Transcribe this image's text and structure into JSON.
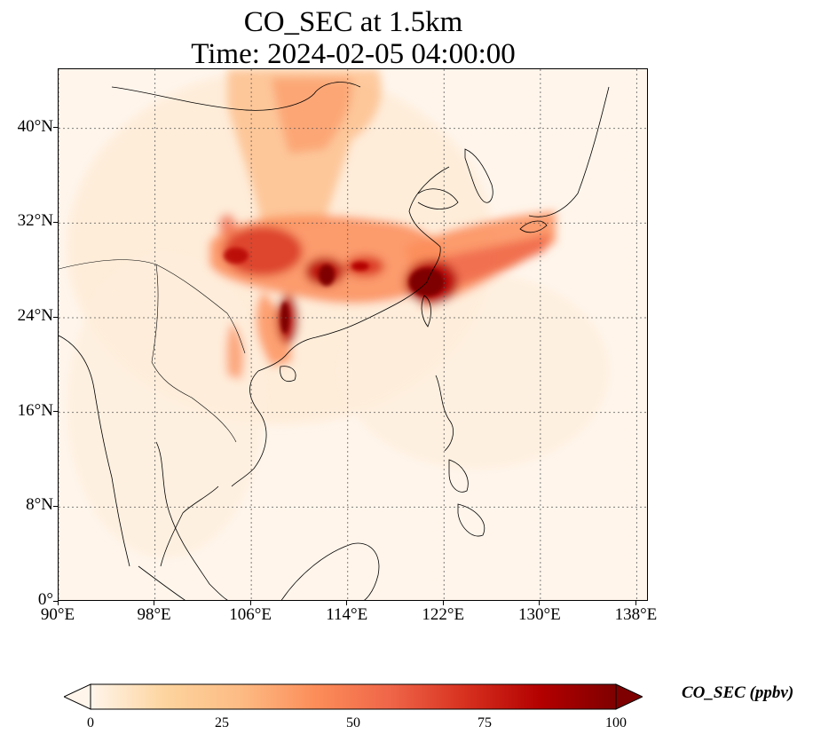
{
  "title": {
    "line1": "CO_SEC at 1.5km",
    "line2": "Time: 2024-02-05 04:00:00"
  },
  "map": {
    "projection": "PlateCarree",
    "lon_range": [
      90,
      139
    ],
    "lat_range": [
      0,
      45
    ],
    "gridlines": "dotted",
    "colormap": "OrRd",
    "x_ticks": [
      "90°E",
      "98°E",
      "106°E",
      "114°E",
      "122°E",
      "130°E",
      "138°E"
    ],
    "y_ticks": [
      "0°",
      "8°N",
      "16°N",
      "24°N",
      "32°N",
      "40°N"
    ]
  },
  "colorbar": {
    "label": "CO_SEC (ppbv)",
    "ticks": [
      "0",
      "25",
      "50",
      "75",
      "100"
    ],
    "range": [
      0,
      100
    ],
    "extend": "both",
    "colors": [
      "#fff5eb",
      "#fdd49e",
      "#fdbb84",
      "#fc8d59",
      "#ef6548",
      "#d7301f",
      "#b30000",
      "#7f0000"
    ]
  }
}
